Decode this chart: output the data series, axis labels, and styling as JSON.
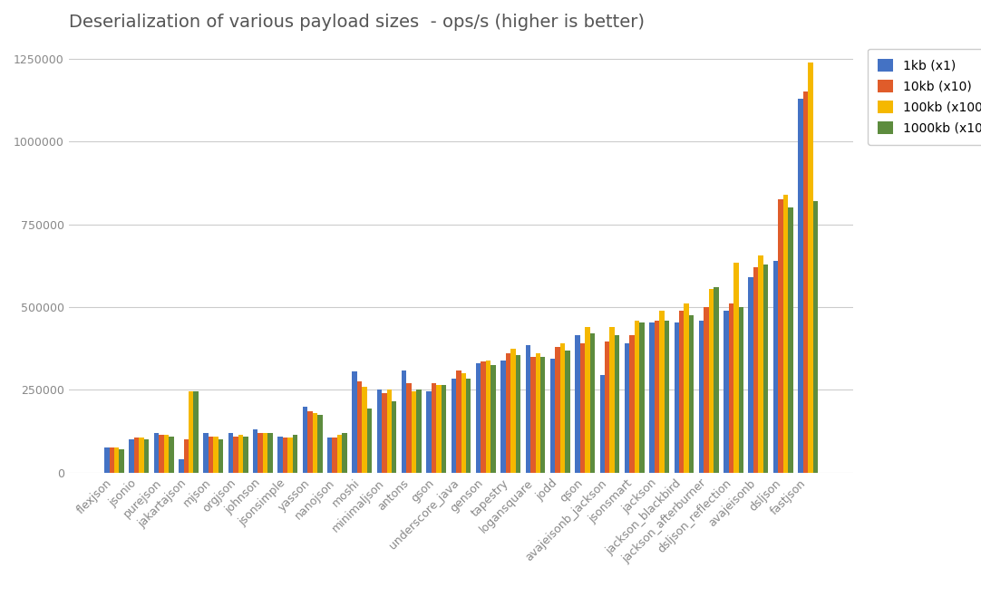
{
  "title": "Deserialization of various payload sizes  - ops/s (higher is better)",
  "categories": [
    "flexjson",
    "jsonio",
    "purejson",
    "jakartajson",
    "mjson",
    "orgjson",
    "johnson",
    "jsonsimple",
    "yasson",
    "nanojson",
    "moshi",
    "minimaljson",
    "antons",
    "gson",
    "underscore_java",
    "genson",
    "tapestry",
    "logansquare",
    "jodd",
    "qson",
    "avajeisonb_jackson",
    "jsonsmart",
    "jackson",
    "jackson_blackbird",
    "jackson_afterburner",
    "dsljson_reflection",
    "avajeisonb",
    "dsljson",
    "fastjson"
  ],
  "series": {
    "1kb (x1)": [
      75000,
      100000,
      120000,
      40000,
      120000,
      120000,
      130000,
      110000,
      200000,
      105000,
      305000,
      250000,
      310000,
      245000,
      285000,
      330000,
      340000,
      385000,
      345000,
      415000,
      295000,
      390000,
      455000,
      455000,
      460000,
      490000,
      590000,
      640000,
      1130000
    ],
    "10kb (x10)": [
      75000,
      105000,
      115000,
      100000,
      110000,
      110000,
      120000,
      105000,
      185000,
      105000,
      275000,
      240000,
      270000,
      270000,
      310000,
      335000,
      360000,
      350000,
      380000,
      390000,
      395000,
      415000,
      460000,
      490000,
      500000,
      510000,
      620000,
      825000,
      1150000
    ],
    "100kb (x100)": [
      75000,
      105000,
      115000,
      245000,
      110000,
      115000,
      120000,
      105000,
      180000,
      115000,
      260000,
      250000,
      245000,
      265000,
      300000,
      340000,
      375000,
      360000,
      390000,
      440000,
      440000,
      460000,
      490000,
      510000,
      555000,
      635000,
      655000,
      840000,
      1240000
    ],
    "1000kb (x1000)": [
      70000,
      100000,
      110000,
      245000,
      100000,
      110000,
      120000,
      115000,
      175000,
      120000,
      195000,
      215000,
      250000,
      265000,
      285000,
      325000,
      355000,
      350000,
      370000,
      420000,
      415000,
      455000,
      460000,
      475000,
      560000,
      500000,
      630000,
      800000,
      820000
    ]
  },
  "colors": {
    "1kb (x1)": "#4472c4",
    "10kb (x10)": "#e05c2a",
    "100kb (x100)": "#f5b800",
    "1000kb (x1000)": "#5d8c3e"
  },
  "ylim": [
    0,
    1300000
  ],
  "yticks": [
    0,
    250000,
    500000,
    750000,
    1000000,
    1250000
  ],
  "background_color": "#ffffff",
  "grid_color": "#cccccc",
  "title_fontsize": 14,
  "tick_fontsize": 9,
  "legend_fontsize": 10
}
